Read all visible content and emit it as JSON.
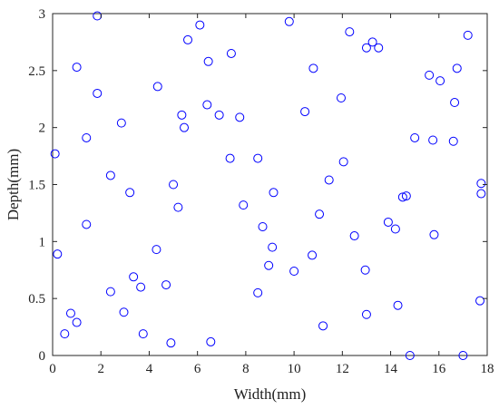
{
  "chart_data": {
    "type": "scatter",
    "xlabel": "Width(mm)",
    "ylabel": "Depth(mm)",
    "xlim": [
      0,
      18
    ],
    "ylim": [
      0,
      3
    ],
    "xticks": [
      0,
      2,
      4,
      6,
      8,
      10,
      12,
      14,
      16,
      18
    ],
    "yticks": [
      0,
      0.5,
      1,
      1.5,
      2,
      2.5,
      3
    ],
    "xtick_labels": [
      "0",
      "2",
      "4",
      "6",
      "8",
      "10",
      "12",
      "14",
      "16",
      "18"
    ],
    "ytick_labels": [
      "0",
      "0.5",
      "1",
      "1.5",
      "2",
      "2.5",
      "3"
    ],
    "grid": false,
    "marker": "open-circle",
    "marker_color": "#0000ff",
    "series": [
      {
        "points": [
          [
            0.1,
            1.77
          ],
          [
            0.2,
            0.89
          ],
          [
            0.5,
            0.19
          ],
          [
            0.75,
            0.37
          ],
          [
            1.0,
            0.29
          ],
          [
            1.0,
            2.53
          ],
          [
            1.4,
            1.91
          ],
          [
            1.4,
            1.15
          ],
          [
            1.85,
            2.3
          ],
          [
            1.85,
            2.98
          ],
          [
            2.4,
            1.58
          ],
          [
            2.4,
            0.56
          ],
          [
            2.85,
            2.04
          ],
          [
            2.95,
            0.38
          ],
          [
            3.2,
            1.43
          ],
          [
            3.35,
            0.69
          ],
          [
            3.65,
            0.6
          ],
          [
            3.75,
            0.19
          ],
          [
            4.3,
            0.93
          ],
          [
            4.35,
            2.36
          ],
          [
            4.7,
            0.62
          ],
          [
            4.9,
            0.11
          ],
          [
            5.0,
            1.5
          ],
          [
            5.2,
            1.3
          ],
          [
            5.35,
            2.11
          ],
          [
            5.45,
            2.0
          ],
          [
            5.6,
            2.77
          ],
          [
            6.1,
            2.9
          ],
          [
            6.4,
            2.2
          ],
          [
            6.45,
            2.58
          ],
          [
            6.55,
            0.12
          ],
          [
            6.9,
            2.11
          ],
          [
            7.35,
            1.73
          ],
          [
            7.4,
            2.65
          ],
          [
            7.75,
            2.09
          ],
          [
            7.9,
            1.32
          ],
          [
            8.5,
            0.55
          ],
          [
            8.5,
            1.73
          ],
          [
            8.7,
            1.13
          ],
          [
            8.95,
            0.79
          ],
          [
            9.1,
            0.95
          ],
          [
            9.15,
            1.43
          ],
          [
            9.8,
            2.93
          ],
          [
            10.0,
            0.74
          ],
          [
            10.45,
            2.14
          ],
          [
            10.75,
            0.88
          ],
          [
            10.8,
            2.52
          ],
          [
            11.05,
            1.24
          ],
          [
            11.2,
            0.26
          ],
          [
            11.45,
            1.54
          ],
          [
            11.95,
            2.26
          ],
          [
            12.05,
            1.7
          ],
          [
            12.3,
            2.84
          ],
          [
            12.5,
            1.05
          ],
          [
            12.95,
            0.75
          ],
          [
            13.0,
            0.36
          ],
          [
            13.0,
            2.7
          ],
          [
            13.25,
            2.75
          ],
          [
            13.5,
            2.7
          ],
          [
            13.9,
            1.17
          ],
          [
            14.2,
            1.11
          ],
          [
            14.3,
            0.44
          ],
          [
            14.5,
            1.39
          ],
          [
            14.65,
            1.4
          ],
          [
            14.8,
            0.0
          ],
          [
            15.0,
            1.91
          ],
          [
            15.6,
            2.46
          ],
          [
            15.75,
            1.89
          ],
          [
            15.8,
            1.06
          ],
          [
            16.05,
            2.41
          ],
          [
            16.6,
            1.88
          ],
          [
            16.65,
            2.22
          ],
          [
            16.75,
            2.52
          ],
          [
            17.0,
            0.0
          ],
          [
            17.2,
            2.81
          ],
          [
            17.7,
            0.48
          ],
          [
            17.75,
            1.42
          ],
          [
            17.75,
            1.51
          ]
        ]
      }
    ]
  }
}
